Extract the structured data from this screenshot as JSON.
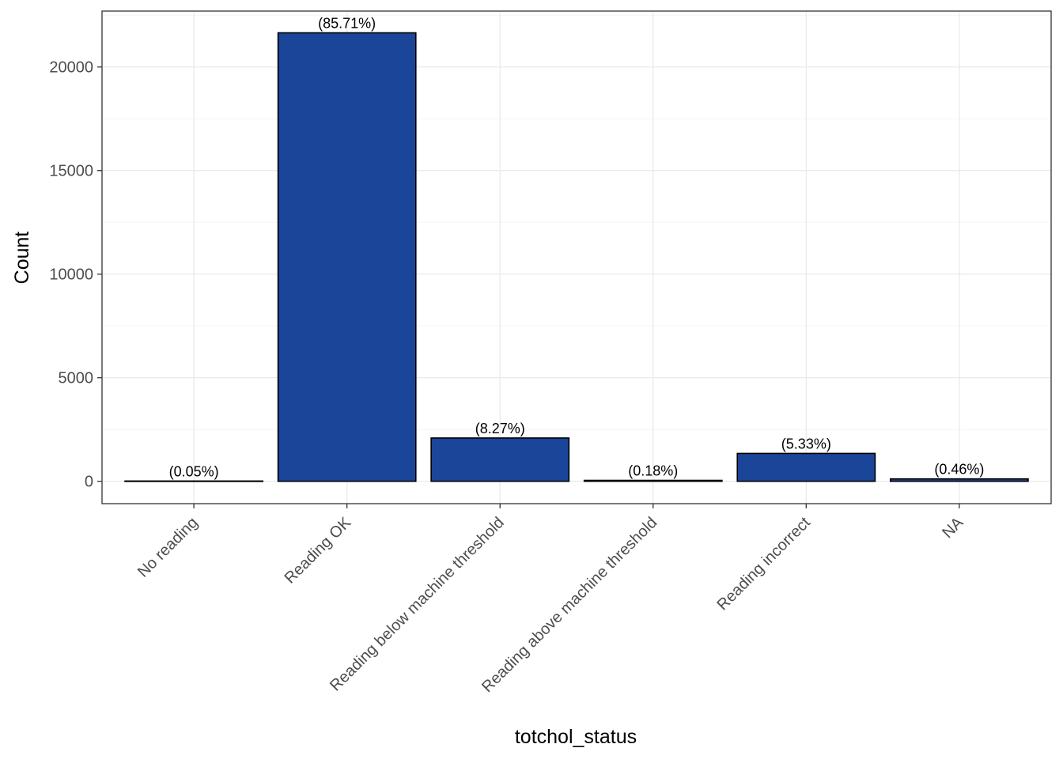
{
  "chart_data": {
    "type": "bar",
    "title": "",
    "xlabel": "totchol_status",
    "ylabel": "Count",
    "categories": [
      "No reading",
      "Reading OK",
      "Reading below machine threshold",
      "Reading above machine threshold",
      "Reading incorrect",
      "NA"
    ],
    "values": [
      13,
      21650,
      2090,
      45,
      1346,
      116
    ],
    "labels": [
      "(0.05%)",
      "(85.71%)",
      "(8.27%)",
      "(0.18%)",
      "(5.33%)",
      "(0.46%)"
    ],
    "ylim": [
      -1080,
      22700
    ],
    "yticks": [
      0,
      5000,
      10000,
      15000,
      20000
    ],
    "ytick_labels": [
      "0",
      "5000",
      "10000",
      "15000",
      "20000"
    ],
    "grid": true,
    "legend": "none",
    "bar_fill": "#1a4599",
    "bar_stroke": "#000000",
    "panel_border": "#333333",
    "grid_major_color": "#ebebeb",
    "grid_minor_color": "#f5f5f5"
  }
}
